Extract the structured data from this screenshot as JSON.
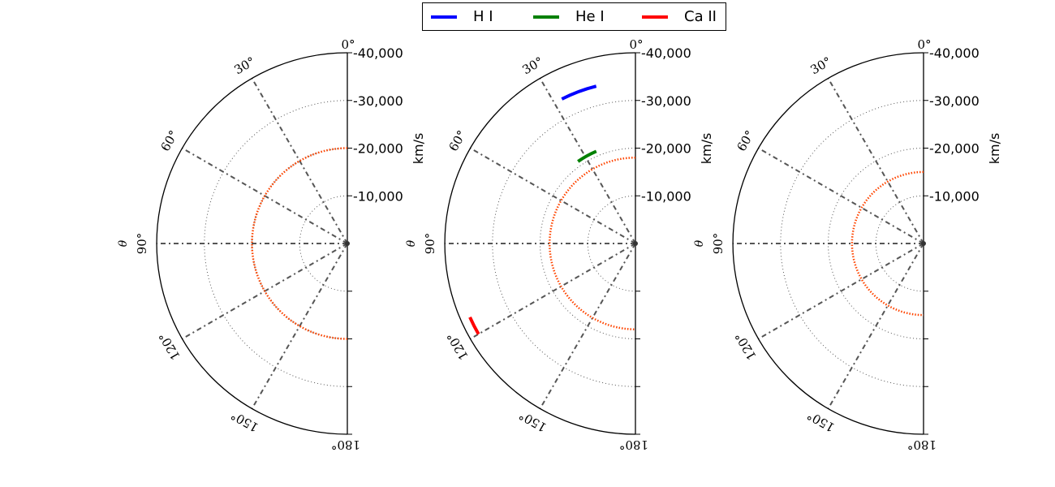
{
  "chart_data": {
    "type": "polar",
    "angle_labels": [
      "0°",
      "30°",
      "60°",
      "90°",
      "120°",
      "150°",
      "180°"
    ],
    "theta_label": "θ",
    "radial_ticks": [
      "-10,000",
      "-20,000",
      "-30,000",
      "-40,000"
    ],
    "radial_label": "km/s",
    "legend": [
      {
        "name": "H I",
        "color": "#0000ff"
      },
      {
        "name": "He I",
        "color": "#008000"
      },
      {
        "name": "Ca II",
        "color": "#ff0000"
      }
    ],
    "grid_color": "#555555",
    "reference_color": "#ff4500",
    "panels": [
      {
        "id": "left",
        "reference_velocity": 20000,
        "arcs": []
      },
      {
        "id": "middle",
        "reference_velocity": 18000,
        "arcs": [
          {
            "series": "H I",
            "velocity": 34000,
            "theta": [
              14,
              27
            ]
          },
          {
            "series": "He I",
            "velocity": 21000,
            "theta": [
              23,
              35
            ]
          },
          {
            "series": "Ca II",
            "velocity": 38000,
            "theta": [
              114,
              120
            ]
          }
        ]
      },
      {
        "id": "right",
        "reference_velocity": 15000,
        "arcs": []
      }
    ]
  }
}
